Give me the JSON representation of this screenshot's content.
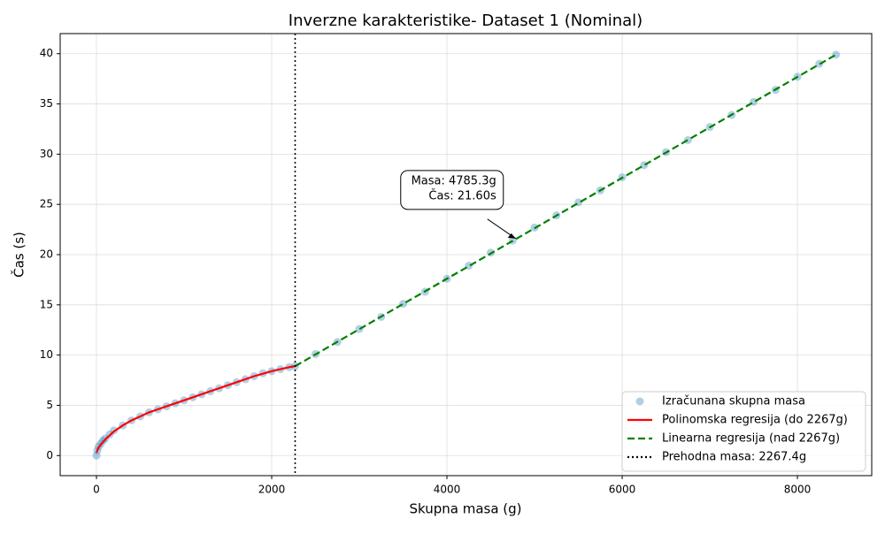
{
  "chart_data": {
    "type": "scatter-regression",
    "title": "Inverzne karakteristike- Dataset 1 (Nominal)",
    "x_label": "Skupna masa (g)",
    "y_label": "Čas (s)",
    "xlim": [
      -414,
      8848
    ],
    "ylim": [
      -2,
      42
    ],
    "xticks": [
      0,
      2000,
      4000,
      6000,
      8000
    ],
    "yticks": [
      0,
      5,
      10,
      15,
      20,
      25,
      30,
      35,
      40
    ],
    "grid": true,
    "legend": "lower right",
    "series": [
      {
        "name": "Izračunana skupna masa",
        "type": "scatter",
        "color": "#1f77b4",
        "x": [
          0,
          10,
          25,
          50,
          75,
          100,
          150,
          200,
          300,
          400,
          500,
          600,
          700,
          800,
          900,
          1000,
          1100,
          1200,
          1300,
          1400,
          1500,
          1600,
          1700,
          1800,
          1900,
          2000,
          2100,
          2200,
          2267,
          2500,
          2750,
          3000,
          3250,
          3500,
          3750,
          4000,
          4250,
          4500,
          4750,
          5000,
          5250,
          5500,
          5750,
          6000,
          6250,
          6500,
          6750,
          7000,
          7250,
          7500,
          7750,
          8000,
          8250,
          8440
        ],
        "y": [
          0,
          0.5,
          0.9,
          1.2,
          1.5,
          1.7,
          2.1,
          2.5,
          3.0,
          3.5,
          3.9,
          4.3,
          4.6,
          4.9,
          5.2,
          5.5,
          5.8,
          6.1,
          6.4,
          6.7,
          7.0,
          7.3,
          7.6,
          7.9,
          8.2,
          8.4,
          8.6,
          8.8,
          8.9,
          10.1,
          11.3,
          12.6,
          13.8,
          15.1,
          16.3,
          17.6,
          18.9,
          20.2,
          21.4,
          22.7,
          23.9,
          25.2,
          26.4,
          27.7,
          28.9,
          30.2,
          31.4,
          32.7,
          33.9,
          35.2,
          36.4,
          37.7,
          39.0,
          39.9
        ]
      },
      {
        "name": "Polinomska regresija (do 2267g)",
        "type": "line",
        "color": "#ff0000",
        "dash": "solid",
        "x": [
          0,
          25,
          50,
          100,
          150,
          200,
          300,
          400,
          500,
          600,
          700,
          800,
          900,
          1000,
          1200,
          1400,
          1600,
          1800,
          2000,
          2100,
          2200,
          2267
        ],
        "y": [
          0.3,
          0.8,
          1.1,
          1.6,
          2.0,
          2.4,
          3.0,
          3.5,
          3.9,
          4.3,
          4.6,
          4.9,
          5.2,
          5.5,
          6.1,
          6.7,
          7.3,
          7.9,
          8.4,
          8.6,
          8.8,
          8.9
        ]
      },
      {
        "name": "Linearna regresija (nad 2267g)",
        "type": "line",
        "color": "#008000",
        "dash": "dashed",
        "x": [
          2267.4,
          8440
        ],
        "y": [
          8.9,
          39.9
        ]
      },
      {
        "name": "Prehodna masa: 2267.4g",
        "type": "vline",
        "color": "#000000",
        "dash": "dotted",
        "x": 2267.4
      }
    ],
    "annotation": {
      "lines": [
        "Masa: 4785.3g",
        "Čas: 21.60s"
      ],
      "x": 4785.3,
      "y": 21.6
    }
  }
}
